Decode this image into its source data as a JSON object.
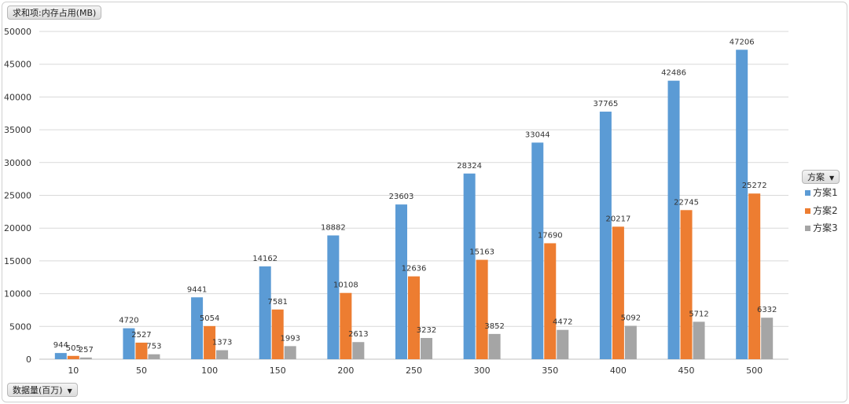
{
  "field_buttons": {
    "values_field": "求和项:内存占用(MB)",
    "row_field": "数据量(百万)",
    "legend_field": "方案"
  },
  "chart_data": {
    "type": "bar",
    "title": "",
    "xlabel": "数据量(百万)",
    "ylabel": "求和项:内存占用(MB)",
    "ylim": [
      0,
      50000
    ],
    "yticks": [
      0,
      5000,
      10000,
      15000,
      20000,
      25000,
      30000,
      35000,
      40000,
      45000,
      50000
    ],
    "grid": true,
    "legend_position": "right",
    "categories": [
      "10",
      "50",
      "100",
      "150",
      "200",
      "250",
      "300",
      "350",
      "400",
      "450",
      "500"
    ],
    "series": [
      {
        "name": "方案1",
        "color": "#5b9bd5",
        "values": [
          944,
          4720,
          9441,
          14162,
          18882,
          23603,
          28324,
          33044,
          37765,
          42486,
          47206
        ]
      },
      {
        "name": "方案2",
        "color": "#ed7d31",
        "values": [
          505,
          2527,
          5054,
          7581,
          10108,
          12636,
          15163,
          17690,
          20217,
          22745,
          25272
        ]
      },
      {
        "name": "方案3",
        "color": "#a5a5a5",
        "values": [
          257,
          753,
          1373,
          1993,
          2613,
          3232,
          3852,
          4472,
          5092,
          5712,
          6332
        ]
      }
    ]
  }
}
